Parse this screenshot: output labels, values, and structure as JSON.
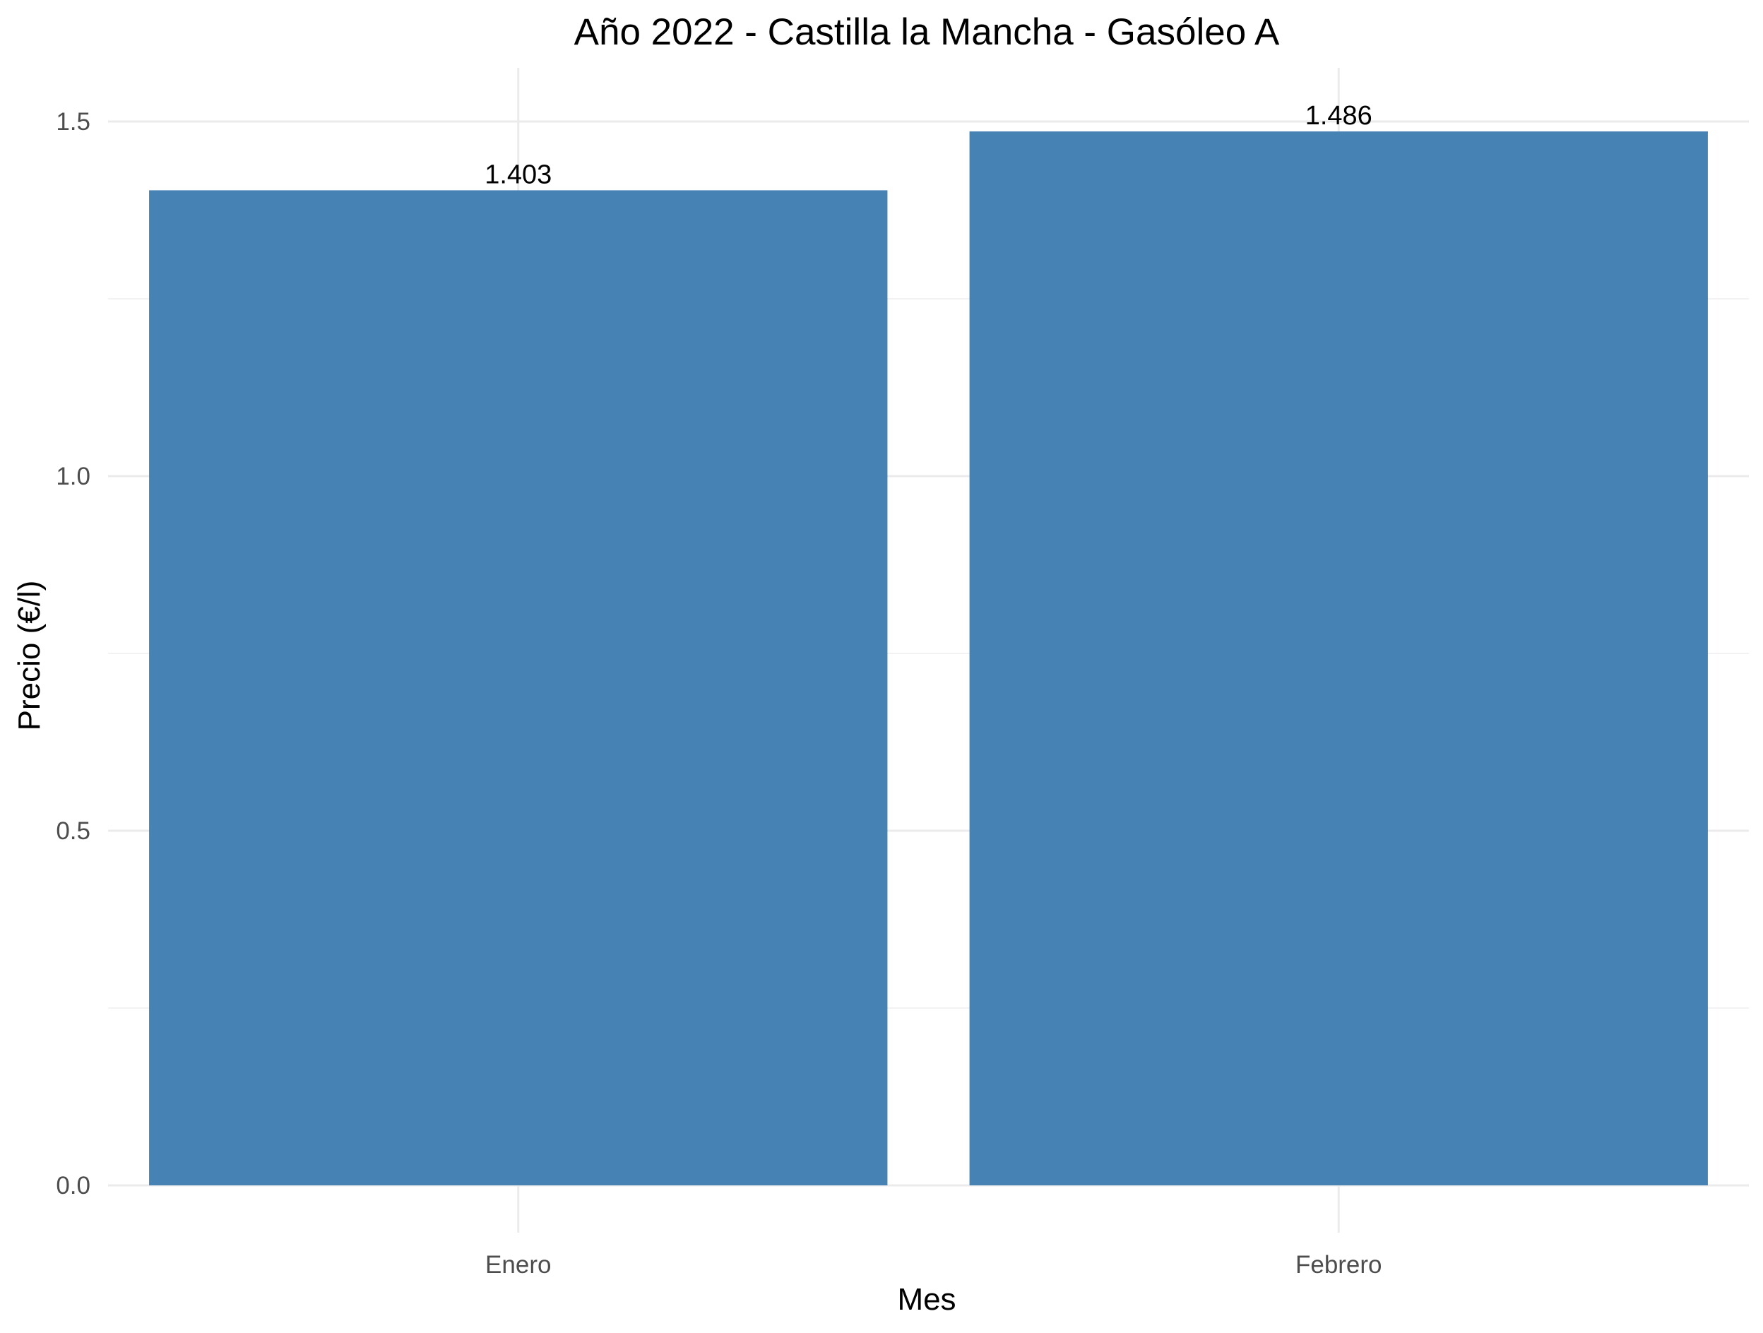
{
  "chart_data": {
    "type": "bar",
    "title": "Año 2022 - Castilla la Mancha - Gasóleo A",
    "xlabel": "Mes",
    "ylabel": "Precio (€/l)",
    "categories": [
      "Enero",
      "Febrero"
    ],
    "values": [
      1.403,
      1.486
    ],
    "value_labels": [
      "1.403",
      "1.486"
    ],
    "y_ticks": [
      0.0,
      0.5,
      1.0,
      1.5
    ],
    "y_tick_labels": [
      "0.0",
      "0.5",
      "1.0",
      "1.5"
    ],
    "ylim": [
      0,
      1.56
    ],
    "grid": true,
    "legend": "none",
    "bar_color": "#4682B4"
  }
}
